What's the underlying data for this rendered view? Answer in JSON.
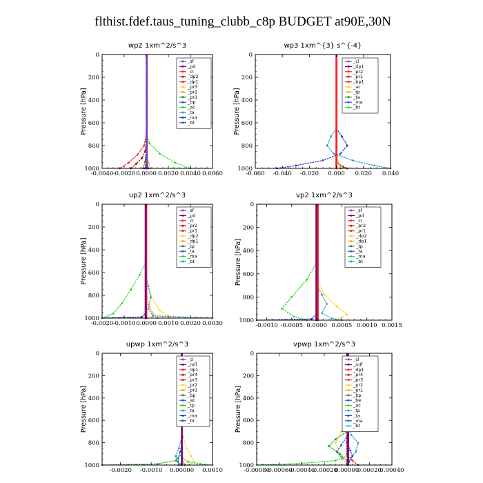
{
  "title": "flthist.fdef.taus_tuning_clubb_c8p  BUDGET at90E,30N",
  "chart_data": [
    {
      "type": "line",
      "title": "wp2  1xm^2/s^3",
      "ylabel": "Pressure [hPa]",
      "xlim": [
        -0.004,
        0.006
      ],
      "ylim": [
        1000,
        0
      ],
      "xticks": [
        "-0.0040",
        "-0.0020",
        "0.0000",
        "0.0020",
        "0.0040",
        "0.0060"
      ],
      "xtick_values": [
        -0.004,
        -0.002,
        0,
        0.002,
        0.004,
        0.006
      ],
      "yticks": [
        "0",
        "200",
        "400",
        "600",
        "800",
        "1000"
      ],
      "ytick_values": [
        0,
        200,
        400,
        600,
        800,
        1000
      ],
      "legend": [
        "_sf",
        "_pd",
        "_cl",
        "_dp2",
        "_dp1",
        "_pr3",
        "_pr2",
        "_pr1",
        "_bp",
        "_ac",
        "_ta",
        "_ma",
        "_bt"
      ],
      "series": [
        {
          "name": "_dp1",
          "color": "#e82020",
          "x": [
            0,
            0,
            -0.0002,
            -0.0008,
            -0.0016,
            -0.0024
          ],
          "y": [
            0,
            700,
            800,
            880,
            950,
            1000
          ]
        },
        {
          "name": "_dp2",
          "color": "#a00000",
          "x": [
            0,
            0,
            -0.0001,
            -0.0004,
            -0.0009,
            -0.0014
          ],
          "y": [
            0,
            760,
            850,
            910,
            960,
            1000
          ]
        },
        {
          "name": "_ac",
          "color": "#22dd22",
          "x": [
            0,
            0,
            0.0003,
            0.0012,
            0.0026,
            0.004
          ],
          "y": [
            0,
            700,
            780,
            870,
            950,
            1000
          ]
        },
        {
          "name": "_pr1",
          "color": "#228822",
          "x": [
            0,
            0,
            -0.0001,
            -0.0003
          ],
          "y": [
            0,
            820,
            940,
            1000
          ]
        },
        {
          "name": "_pr2",
          "color": "#ffa020",
          "x": [
            0,
            0,
            0.0002,
            0.0004
          ],
          "y": [
            0,
            850,
            950,
            1000
          ]
        },
        {
          "name": "_bp",
          "color": "#4040ff",
          "x": [
            0,
            0,
            0.0002
          ],
          "y": [
            0,
            900,
            1000
          ]
        },
        {
          "name": "_cl",
          "color": "#ff2020",
          "x": [
            0,
            0,
            0.0001
          ],
          "y": [
            0,
            900,
            1000
          ]
        },
        {
          "name": "_pd",
          "color": "#800080",
          "x": [
            0,
            0,
            -0.0001
          ],
          "y": [
            0,
            920,
            1000
          ]
        },
        {
          "name": "_bt",
          "color": "#20c0ff",
          "x": [
            0,
            0
          ],
          "y": [
            0,
            1000
          ]
        },
        {
          "name": "_sf",
          "color": "#8040c0",
          "x": [
            5e-05,
            5e-05
          ],
          "y": [
            0,
            1000
          ],
          "width": 2.6
        }
      ]
    },
    {
      "type": "line",
      "title": "wp3  1xm^{3} s^{-4}",
      "ylabel": "Pressure [hPa]",
      "xlim": [
        -0.06,
        0.04
      ],
      "ylim": [
        1000,
        0
      ],
      "xticks": [
        "-0.060",
        "-0.040",
        "-0.020",
        "0.000",
        "0.020",
        "0.040"
      ],
      "xtick_values": [
        -0.06,
        -0.04,
        -0.02,
        0,
        0.02,
        0.04
      ],
      "yticks": [
        "0",
        "200",
        "400",
        "600",
        "800",
        "1000"
      ],
      "ytick_values": [
        0,
        200,
        400,
        600,
        800,
        1000
      ],
      "legend": [
        "_cl",
        "_dp1",
        "_pr2",
        "_pr1",
        "_bp1",
        "_ac",
        "_tp",
        "_ta",
        "_ma",
        "_bt"
      ],
      "series": [
        {
          "name": "_ta",
          "color": "#3030c0",
          "x": [
            0,
            0,
            0.004,
            0.008,
            0.003,
            -0.01,
            -0.03,
            -0.044
          ],
          "y": [
            0,
            650,
            720,
            800,
            870,
            930,
            975,
            1000
          ]
        },
        {
          "name": "_tp",
          "color": "#20a0c0",
          "x": [
            0,
            0,
            -0.004,
            -0.007,
            -0.002,
            0.012,
            0.028,
            0.04
          ],
          "y": [
            0,
            650,
            720,
            800,
            870,
            930,
            975,
            1000
          ]
        },
        {
          "name": "_ac",
          "color": "#22dd22",
          "x": [
            0,
            0,
            0.003
          ],
          "y": [
            0,
            900,
            1000
          ]
        },
        {
          "name": "_pr1",
          "color": "#ffa020",
          "x": [
            0,
            0,
            0.004
          ],
          "y": [
            0,
            920,
            1000
          ]
        },
        {
          "name": "_dp1",
          "color": "#c01010",
          "x": [
            0,
            0,
            0.005,
            0.008
          ],
          "y": [
            0,
            950,
            985,
            1000
          ]
        },
        {
          "name": "_cl",
          "color": "#ff2020",
          "x": [
            0,
            0
          ],
          "y": [
            0,
            1000
          ],
          "width": 2.8
        }
      ]
    },
    {
      "type": "line",
      "title": "up2  1xm^2/s^3",
      "ylabel": "Pressure [hPa]",
      "xlim": [
        -0.002,
        0.003
      ],
      "ylim": [
        1000,
        0
      ],
      "xticks": [
        "-0.0020",
        "-0.0010",
        "0.0000",
        "0.0010",
        "0.0020",
        "0.0030"
      ],
      "xtick_values": [
        -0.002,
        -0.001,
        0,
        0.001,
        0.002,
        0.003
      ],
      "yticks": [
        "0",
        "200",
        "400",
        "600",
        "800",
        "1000"
      ],
      "ytick_values": [
        0,
        200,
        400,
        600,
        800,
        1000
      ],
      "legend": [
        "_sf",
        "_pd",
        "_cl",
        "_pr2",
        "_pr1",
        "_dp2",
        "_dp1",
        "_tp",
        "_ta",
        "_ma",
        "_bt"
      ],
      "series": [
        {
          "name": "_dp1",
          "color": "#22dd22",
          "x": [
            0,
            0,
            -0.0003,
            -0.0007,
            -0.0011,
            -0.0015,
            -0.002
          ],
          "y": [
            0,
            500,
            620,
            750,
            870,
            960,
            1000
          ]
        },
        {
          "name": "_pr1",
          "color": "#ffd020",
          "x": [
            0,
            0,
            0.0002,
            0.0006,
            0.0011
          ],
          "y": [
            0,
            650,
            800,
            930,
            1000
          ]
        },
        {
          "name": "_pr2",
          "color": "#ffa020",
          "x": [
            0,
            0,
            0.0001,
            0.0003,
            0.0005
          ],
          "y": [
            0,
            780,
            880,
            960,
            1000
          ]
        },
        {
          "name": "_tp",
          "color": "#4090c0",
          "x": [
            0,
            0,
            0.0001,
            0.0002,
            0.0001,
            0.0003,
            0.003
          ],
          "y": [
            0,
            650,
            720,
            820,
            920,
            980,
            1000
          ]
        },
        {
          "name": "_ta",
          "color": "#3030c0",
          "x": [
            0,
            0,
            -0.0002,
            -0.002
          ],
          "y": [
            0,
            950,
            990,
            1000
          ]
        },
        {
          "name": "_cl",
          "color": "#e82020",
          "x": [
            0,
            0
          ],
          "y": [
            0,
            1000
          ],
          "width": 2.6
        },
        {
          "name": "_sf",
          "color": "#800080",
          "x": [
            -3e-05,
            -3e-05
          ],
          "y": [
            0,
            1000
          ],
          "width": 2.6
        }
      ]
    },
    {
      "type": "line",
      "title": "vp2  1xm^2/s^3",
      "ylabel": "Pressure [hPa]",
      "xlim": [
        -0.0012,
        0.0015
      ],
      "ylim": [
        1000,
        0
      ],
      "xticks": [
        "-0.0010",
        "-0.0005",
        "0.0000",
        "0.0005",
        "0.0010",
        "0.0015"
      ],
      "xtick_values": [
        -0.001,
        -0.0005,
        0,
        0.0005,
        0.001,
        0.0015
      ],
      "yticks": [
        "0",
        "200",
        "400",
        "600",
        "800",
        "1000"
      ],
      "ytick_values": [
        0,
        200,
        400,
        600,
        800,
        1000
      ],
      "legend": [
        "_sf",
        "_pd",
        "_cl",
        "_pr2",
        "_pr1",
        "_dp2",
        "_dp1",
        "_tp",
        "_ta",
        "_ma",
        "_bt"
      ],
      "series": [
        {
          "name": "_dp1",
          "color": "#22dd22",
          "x": [
            0,
            0,
            -0.0002,
            -0.0005,
            -0.0007,
            -0.00045,
            -0.0002
          ],
          "y": [
            0,
            500,
            650,
            800,
            900,
            970,
            1000
          ]
        },
        {
          "name": "_pr1",
          "color": "#ffd020",
          "x": [
            0,
            0,
            0.00015,
            0.0004,
            0.0006,
            0.0004
          ],
          "y": [
            0,
            650,
            780,
            880,
            950,
            1000
          ]
        },
        {
          "name": "_tp",
          "color": "#40a0c0",
          "x": [
            0,
            0,
            0.0001,
            0.0002,
            0.0001,
            0.0003,
            0.0005
          ],
          "y": [
            0,
            700,
            780,
            860,
            940,
            985,
            1000
          ]
        },
        {
          "name": "_ta",
          "color": "#3030c0",
          "x": [
            0,
            0,
            -0.0001,
            -0.0012
          ],
          "y": [
            0,
            940,
            990,
            1000
          ]
        },
        {
          "name": "_cl",
          "color": "#e82020",
          "x": [
            2e-05,
            2e-05
          ],
          "y": [
            0,
            1000
          ],
          "width": 2.6
        },
        {
          "name": "_sf",
          "color": "#800080",
          "x": [
            -1e-05,
            -1e-05
          ],
          "y": [
            0,
            1000
          ],
          "width": 2.4
        }
      ]
    },
    {
      "type": "line",
      "title": "upwp  1xm^2/s^3",
      "ylabel": "Pressure [hPa]",
      "xlim": [
        -0.0026,
        0.001
      ],
      "ylim": [
        1000,
        0
      ],
      "xticks": [
        "-0.0020",
        "-0.0010",
        "0.00000",
        "0.0010"
      ],
      "xtick_values": [
        -0.002,
        -0.001,
        0,
        0.001
      ],
      "yticks": [
        "0",
        "200",
        "400",
        "600",
        "800",
        "1000"
      ],
      "ytick_values": [
        0,
        200,
        400,
        600,
        800,
        1000
      ],
      "legend": [
        "_cl",
        "_mfl",
        "_dp1",
        "_pr4",
        "_pr3",
        "_pr2",
        "_pr1",
        "_bp",
        "_ac",
        "_tp",
        "_ta",
        "_ma",
        "_bt"
      ],
      "series": [
        {
          "name": "_pr1",
          "color": "#ffd020",
          "x": [
            0,
            0,
            5e-05,
            0.00015,
            0.0003,
            0.0004,
            0.0002
          ],
          "y": [
            0,
            600,
            750,
            850,
            920,
            970,
            1000
          ]
        },
        {
          "name": "_ac",
          "color": "#20a0c0",
          "x": [
            0,
            0,
            -0.0001,
            -0.0002,
            -0.00015,
            0
          ],
          "y": [
            0,
            750,
            850,
            920,
            970,
            1000
          ]
        },
        {
          "name": "_bp",
          "color": "#2060a0",
          "x": [
            0,
            0,
            -5e-05,
            -0.00012,
            -0.0001
          ],
          "y": [
            0,
            800,
            880,
            940,
            1000
          ]
        },
        {
          "name": "_tp",
          "color": "#22aa22",
          "x": [
            0,
            0,
            -0.0002,
            -0.0008,
            -0.0026
          ],
          "y": [
            0,
            900,
            960,
            990,
            1000
          ]
        },
        {
          "name": "_ta",
          "color": "#22dd22",
          "x": [
            0,
            0,
            0.0002,
            0.0006,
            0.001
          ],
          "y": [
            0,
            930,
            970,
            990,
            1000
          ]
        },
        {
          "name": "_dp1",
          "color": "#e82020",
          "x": [
            0,
            0,
            0.0001
          ],
          "y": [
            0,
            950,
            1000
          ]
        },
        {
          "name": "_cl",
          "color": "#800080",
          "x": [
            0,
            0
          ],
          "y": [
            0,
            1000
          ],
          "width": 2.6
        }
      ]
    },
    {
      "type": "line",
      "title": "vpwp  1xm^2/s^3",
      "ylabel": "Pressure [hPa]",
      "xlim": [
        -0.0008,
        0.0004
      ],
      "ylim": [
        1000,
        0
      ],
      "xticks": [
        "-0.00080",
        "-0.00060",
        "-0.00040",
        "-0.00020",
        "0.00000",
        "0.00020",
        "0.00040"
      ],
      "xtick_values": [
        -0.0008,
        -0.0006,
        -0.0004,
        -0.0002,
        0,
        0.0002,
        0.0004
      ],
      "yticks": [
        "0",
        "200",
        "400",
        "600",
        "800",
        "1000"
      ],
      "ytick_values": [
        0,
        200,
        400,
        600,
        800,
        1000
      ],
      "legend": [
        "_cl",
        "_mfl",
        "_dp1",
        "_pr4",
        "_pr3",
        "_pr2",
        "_pr1",
        "_bp",
        "_be",
        "_ac",
        "_tp",
        "_ta",
        "_ma",
        "_bt"
      ],
      "series": [
        {
          "name": "_pr1",
          "color": "#ffd020",
          "x": [
            0,
            0,
            -5e-05,
            -0.0001,
            -6e-05,
            0
          ],
          "y": [
            0,
            600,
            700,
            800,
            900,
            1000
          ]
        },
        {
          "name": "_ac",
          "color": "#20a0c0",
          "x": [
            0,
            0,
            4e-05,
            0.0001,
            8e-05,
            2e-05
          ],
          "y": [
            0,
            650,
            730,
            800,
            880,
            960
          ]
        },
        {
          "name": "_be",
          "color": "#22aa22",
          "x": [
            0,
            0,
            -0.0001,
            -0.00016,
            -6e-05,
            0
          ],
          "y": [
            0,
            700,
            770,
            830,
            900,
            960
          ]
        },
        {
          "name": "_bp",
          "color": "#2060a0",
          "x": [
            0,
            0,
            -5e-05,
            -9e-05,
            -4e-05
          ],
          "y": [
            0,
            750,
            820,
            880,
            940
          ]
        },
        {
          "name": "_tp",
          "color": "#3030c0",
          "x": [
            0,
            0,
            3e-05,
            5e-05,
            2e-05
          ],
          "y": [
            0,
            800,
            870,
            920,
            970
          ]
        },
        {
          "name": "_ta",
          "color": "#22dd22",
          "x": [
            0,
            0,
            -0.0001,
            -0.0004,
            -0.0008
          ],
          "y": [
            0,
            920,
            960,
            985,
            1000
          ]
        },
        {
          "name": "_dp1",
          "color": "#e82020",
          "x": [
            0,
            0,
            5e-05,
            0.0001
          ],
          "y": [
            0,
            900,
            960,
            1000
          ]
        },
        {
          "name": "_cl",
          "color": "#800080",
          "x": [
            1e-05,
            1e-05
          ],
          "y": [
            0,
            1000
          ],
          "width": 3.2
        }
      ]
    }
  ]
}
